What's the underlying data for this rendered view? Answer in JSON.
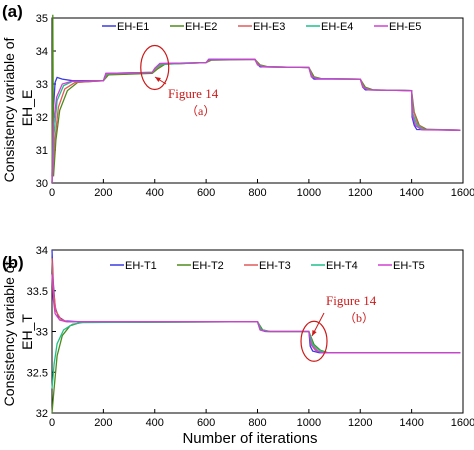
{
  "colors": {
    "EH1": "#3a3ae0",
    "EH2": "#4d8a1a",
    "EH3": "#e05a5a",
    "EH4": "#1fbf8a",
    "EH5": "#d040d0",
    "annotation": "#cc1a1a"
  },
  "xlabel": "Number of iterations",
  "chart_data": [
    {
      "type": "line",
      "panel_label": "(a)",
      "ylabel": "Consistency variable of EH_E",
      "xlim": [
        0,
        1600
      ],
      "ylim": [
        30,
        35
      ],
      "xticks": [
        "0",
        "200",
        "400",
        "600",
        "800",
        "1000",
        "1200",
        "1400",
        "1600"
      ],
      "yticks": [
        "30",
        "31",
        "32",
        "33",
        "34",
        "35"
      ],
      "legend_position": "top",
      "annotation": {
        "label": "Figure 14",
        "sublabel": "（a）",
        "circle_x": 400,
        "circle_y": 33.5
      },
      "series": [
        {
          "name": "EH-E1",
          "color": "EH1",
          "values": [
            [
              0,
              30.2
            ],
            [
              5,
              32.2
            ],
            [
              12,
              33.05
            ],
            [
              20,
              33.2
            ],
            [
              40,
              33.15
            ],
            [
              80,
              33.1
            ],
            [
              200,
              33.1
            ],
            [
              210,
              33.32
            ],
            [
              390,
              33.35
            ],
            [
              400,
              33.45
            ],
            [
              410,
              33.55
            ],
            [
              420,
              33.62
            ],
            [
              600,
              33.65
            ],
            [
              610,
              33.75
            ],
            [
              790,
              33.75
            ],
            [
              800,
              33.6
            ],
            [
              810,
              33.52
            ],
            [
              1000,
              33.5
            ],
            [
              1010,
              33.22
            ],
            [
              1020,
              33.15
            ],
            [
              1200,
              33.15
            ],
            [
              1210,
              32.9
            ],
            [
              1220,
              32.82
            ],
            [
              1400,
              32.8
            ],
            [
              1402,
              32.0
            ],
            [
              1410,
              31.75
            ],
            [
              1420,
              31.62
            ],
            [
              1590,
              31.6
            ]
          ]
        },
        {
          "name": "EH-E2",
          "color": "EH2",
          "values": [
            [
              0,
              30.0
            ],
            [
              3,
              35.1
            ],
            [
              6,
              30.2
            ],
            [
              15,
              31.3
            ],
            [
              30,
              32.2
            ],
            [
              60,
              32.8
            ],
            [
              100,
              33.05
            ],
            [
              200,
              33.1
            ],
            [
              220,
              33.28
            ],
            [
              390,
              33.32
            ],
            [
              410,
              33.45
            ],
            [
              440,
              33.6
            ],
            [
              600,
              33.65
            ],
            [
              620,
              33.72
            ],
            [
              790,
              33.75
            ],
            [
              810,
              33.58
            ],
            [
              840,
              33.52
            ],
            [
              1000,
              33.5
            ],
            [
              1020,
              33.22
            ],
            [
              1050,
              33.16
            ],
            [
              1200,
              33.15
            ],
            [
              1220,
              32.9
            ],
            [
              1250,
              32.82
            ],
            [
              1400,
              32.8
            ],
            [
              1410,
              32.15
            ],
            [
              1430,
              31.75
            ],
            [
              1460,
              31.62
            ],
            [
              1590,
              31.6
            ]
          ]
        },
        {
          "name": "EH-E3",
          "color": "EH3",
          "values": [
            [
              0,
              30.0
            ],
            [
              10,
              31.2
            ],
            [
              25,
              32.3
            ],
            [
              50,
              32.85
            ],
            [
              90,
              33.05
            ],
            [
              200,
              33.1
            ],
            [
              215,
              33.3
            ],
            [
              390,
              33.35
            ],
            [
              405,
              33.47
            ],
            [
              430,
              33.6
            ],
            [
              600,
              33.65
            ],
            [
              615,
              33.73
            ],
            [
              790,
              33.75
            ],
            [
              805,
              33.58
            ],
            [
              830,
              33.52
            ],
            [
              1000,
              33.5
            ],
            [
              1015,
              33.22
            ],
            [
              1040,
              33.16
            ],
            [
              1200,
              33.15
            ],
            [
              1215,
              32.9
            ],
            [
              1240,
              32.82
            ],
            [
              1400,
              32.8
            ],
            [
              1407,
              32.2
            ],
            [
              1425,
              31.78
            ],
            [
              1450,
              31.63
            ],
            [
              1590,
              31.6
            ]
          ]
        },
        {
          "name": "EH-E4",
          "color": "EH4",
          "values": [
            [
              0,
              30.0
            ],
            [
              8,
              31.5
            ],
            [
              20,
              32.5
            ],
            [
              45,
              32.95
            ],
            [
              80,
              33.08
            ],
            [
              200,
              33.1
            ],
            [
              212,
              33.31
            ],
            [
              390,
              33.35
            ],
            [
              402,
              33.47
            ],
            [
              425,
              33.6
            ],
            [
              600,
              33.65
            ],
            [
              612,
              33.74
            ],
            [
              790,
              33.75
            ],
            [
              802,
              33.58
            ],
            [
              825,
              33.52
            ],
            [
              1000,
              33.5
            ],
            [
              1012,
              33.22
            ],
            [
              1035,
              33.16
            ],
            [
              1200,
              33.15
            ],
            [
              1212,
              32.9
            ],
            [
              1235,
              32.82
            ],
            [
              1400,
              32.8
            ],
            [
              1405,
              32.1
            ],
            [
              1420,
              31.76
            ],
            [
              1445,
              31.62
            ],
            [
              1590,
              31.6
            ]
          ]
        },
        {
          "name": "EH-E5",
          "color": "EH5",
          "values": [
            [
              0,
              30.0
            ],
            [
              6,
              31.8
            ],
            [
              18,
              32.6
            ],
            [
              40,
              33.0
            ],
            [
              75,
              33.08
            ],
            [
              200,
              33.1
            ],
            [
              210,
              33.32
            ],
            [
              390,
              33.35
            ],
            [
              400,
              33.48
            ],
            [
              420,
              33.62
            ],
            [
              600,
              33.65
            ],
            [
              610,
              33.74
            ],
            [
              790,
              33.75
            ],
            [
              800,
              33.58
            ],
            [
              820,
              33.52
            ],
            [
              1000,
              33.5
            ],
            [
              1010,
              33.22
            ],
            [
              1030,
              33.16
            ],
            [
              1200,
              33.15
            ],
            [
              1210,
              32.9
            ],
            [
              1230,
              32.82
            ],
            [
              1400,
              32.8
            ],
            [
              1403,
              32.05
            ],
            [
              1415,
              31.74
            ],
            [
              1440,
              31.61
            ],
            [
              1590,
              31.6
            ]
          ]
        }
      ]
    },
    {
      "type": "line",
      "panel_label": "(b)",
      "ylabel": "Consistency variable of EH_T",
      "xlim": [
        0,
        1600
      ],
      "ylim": [
        32,
        34
      ],
      "xticks": [
        "0",
        "200",
        "400",
        "600",
        "800",
        "1000",
        "1200",
        "1400",
        "1600"
      ],
      "yticks": [
        "32",
        "32.5",
        "33",
        "33.5",
        "34"
      ],
      "legend_position": "top",
      "annotation": {
        "label": "Figure 14",
        "sublabel": "（b）",
        "circle_x": 1020,
        "circle_y": 32.88
      },
      "series": [
        {
          "name": "EH-T1",
          "color": "EH1",
          "values": [
            [
              0,
              34.0
            ],
            [
              5,
              33.6
            ],
            [
              12,
              33.3
            ],
            [
              25,
              33.18
            ],
            [
              50,
              33.13
            ],
            [
              100,
              33.12
            ],
            [
              800,
              33.12
            ],
            [
              810,
              33.02
            ],
            [
              830,
              33.0
            ],
            [
              1000,
              33.0
            ],
            [
              1005,
              32.82
            ],
            [
              1015,
              32.76
            ],
            [
              1040,
              32.74
            ],
            [
              1590,
              32.74
            ]
          ]
        },
        {
          "name": "EH-T2",
          "color": "EH2",
          "values": [
            [
              0,
              32.0
            ],
            [
              8,
              32.3
            ],
            [
              20,
              32.7
            ],
            [
              40,
              32.95
            ],
            [
              70,
              33.07
            ],
            [
              110,
              33.11
            ],
            [
              800,
              33.12
            ],
            [
              820,
              33.02
            ],
            [
              850,
              33.0
            ],
            [
              1000,
              33.0
            ],
            [
              1020,
              32.84
            ],
            [
              1045,
              32.77
            ],
            [
              1075,
              32.74
            ],
            [
              1590,
              32.74
            ]
          ]
        },
        {
          "name": "EH-T3",
          "color": "EH3",
          "values": [
            [
              0,
              33.9
            ],
            [
              6,
              33.5
            ],
            [
              15,
              33.25
            ],
            [
              35,
              33.15
            ],
            [
              60,
              33.12
            ],
            [
              800,
              33.12
            ],
            [
              815,
              33.02
            ],
            [
              840,
              33.0
            ],
            [
              1000,
              33.0
            ],
            [
              1012,
              32.83
            ],
            [
              1035,
              32.76
            ],
            [
              1060,
              32.74
            ],
            [
              1590,
              32.74
            ]
          ]
        },
        {
          "name": "EH-T4",
          "color": "EH4",
          "values": [
            [
              0,
              32.3
            ],
            [
              8,
              32.6
            ],
            [
              20,
              32.85
            ],
            [
              45,
              33.02
            ],
            [
              80,
              33.09
            ],
            [
              120,
              33.11
            ],
            [
              800,
              33.12
            ],
            [
              815,
              33.02
            ],
            [
              845,
              33.0
            ],
            [
              1000,
              33.0
            ],
            [
              1015,
              32.84
            ],
            [
              1040,
              32.77
            ],
            [
              1065,
              32.74
            ],
            [
              1590,
              32.74
            ]
          ]
        },
        {
          "name": "EH-T5",
          "color": "EH5",
          "values": [
            [
              0,
              33.7
            ],
            [
              5,
              33.4
            ],
            [
              12,
              33.22
            ],
            [
              30,
              33.14
            ],
            [
              55,
              33.12
            ],
            [
              800,
              33.12
            ],
            [
              810,
              33.02
            ],
            [
              835,
              33.0
            ],
            [
              1000,
              33.0
            ],
            [
              1008,
              32.84
            ],
            [
              1025,
              32.77
            ],
            [
              1050,
              32.74
            ],
            [
              1590,
              32.74
            ]
          ]
        }
      ]
    }
  ]
}
